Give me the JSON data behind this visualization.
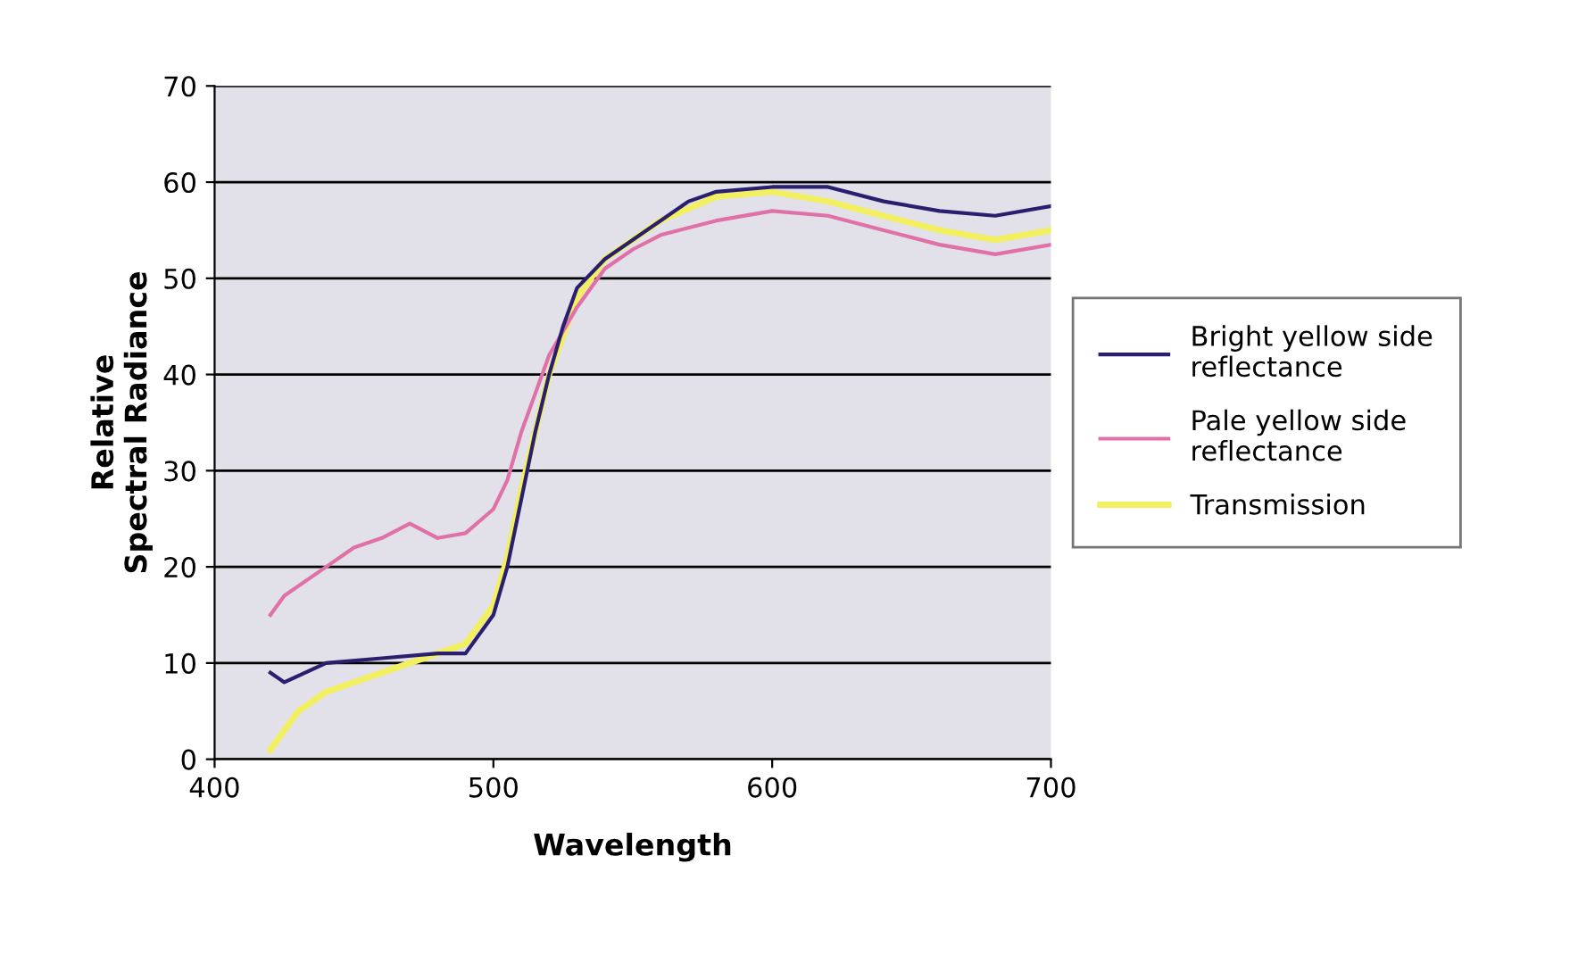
{
  "chart_data": {
    "type": "line",
    "xlabel": "Wavelength",
    "ylabel": "Relative\nSpectral Radiance",
    "xlim": [
      400,
      700
    ],
    "xticks": [
      400,
      500,
      600,
      700
    ],
    "ylim": [
      0,
      70
    ],
    "yticks": [
      0,
      10,
      20,
      30,
      40,
      50,
      60,
      70
    ],
    "grid": "y",
    "legend": "right",
    "series": [
      {
        "name": "Bright yellow side reflectance",
        "color": "#2a1f6e",
        "x": [
          420,
          425,
          440,
          460,
          480,
          490,
          500,
          505,
          510,
          515,
          520,
          525,
          530,
          540,
          550,
          560,
          570,
          580,
          600,
          620,
          640,
          660,
          680,
          700
        ],
        "values": [
          9,
          8,
          10,
          10.5,
          11,
          11,
          15,
          20,
          27,
          34,
          40,
          45,
          49,
          52,
          54,
          56,
          58,
          59,
          59.5,
          59.5,
          58,
          57,
          56.5,
          57.5
        ]
      },
      {
        "name": "Pale yellow side reflectance",
        "color": "#e070a8",
        "x": [
          420,
          425,
          440,
          450,
          460,
          470,
          480,
          490,
          500,
          505,
          510,
          515,
          520,
          530,
          540,
          550,
          560,
          580,
          600,
          620,
          640,
          660,
          680,
          700
        ],
        "values": [
          15,
          17,
          20,
          22,
          23,
          24.5,
          23,
          23.5,
          26,
          29,
          34,
          38,
          42,
          47,
          51,
          53,
          54.5,
          56,
          57,
          56.5,
          55,
          53.5,
          52.5,
          53.5
        ]
      },
      {
        "name": "Transmission",
        "color": "#f2f060",
        "x": [
          420,
          425,
          430,
          440,
          460,
          470,
          480,
          490,
          500,
          505,
          510,
          520,
          530,
          540,
          560,
          580,
          600,
          620,
          640,
          660,
          680,
          700
        ],
        "values": [
          1,
          3,
          5,
          7,
          9,
          10,
          11,
          12,
          16,
          21,
          28,
          40,
          48,
          52,
          56,
          58.5,
          59,
          58,
          56.5,
          55,
          54,
          55
        ]
      }
    ]
  }
}
